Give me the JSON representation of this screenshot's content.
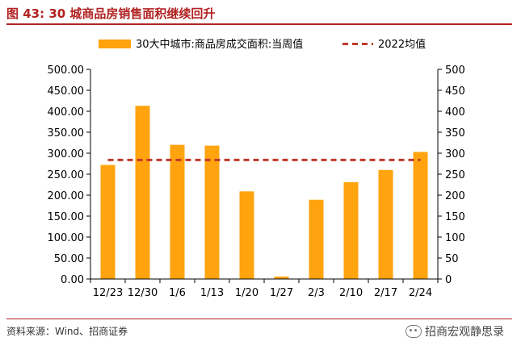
{
  "header": {
    "figure_title": "图 43:  30 城商品房销售面积继续回升"
  },
  "footer": {
    "source": "资料来源：Wind、招商证券",
    "watermark": "招商宏观静思录",
    "watermark_icon": "wechat-icon"
  },
  "colors": {
    "bar": "#FFA30F",
    "avg_line": "#C0392B",
    "title": "#B22222"
  },
  "chart_data": {
    "type": "bar",
    "categories": [
      "12/23",
      "12/30",
      "1/6",
      "1/13",
      "1/20",
      "1/27",
      "2/3",
      "2/10",
      "2/17",
      "2/24"
    ],
    "series": [
      {
        "name": "30大中城市:商品房成交面积:当周值",
        "type": "bar",
        "values": [
          272,
          413,
          320,
          318,
          209,
          6,
          189,
          231,
          260,
          303
        ]
      },
      {
        "name": "2022均值",
        "type": "line",
        "style": "dashed",
        "value": 284
      }
    ],
    "left_ticks": [
      "0.00",
      "50.00",
      "100.00",
      "150.00",
      "200.00",
      "250.00",
      "300.00",
      "350.00",
      "400.00",
      "450.00",
      "500.00"
    ],
    "right_ticks": [
      "0",
      "50",
      "100",
      "150",
      "200",
      "250",
      "300",
      "350",
      "400",
      "450",
      "500"
    ],
    "ylim": [
      0,
      500
    ],
    "legend_position": "top",
    "grid": false
  }
}
